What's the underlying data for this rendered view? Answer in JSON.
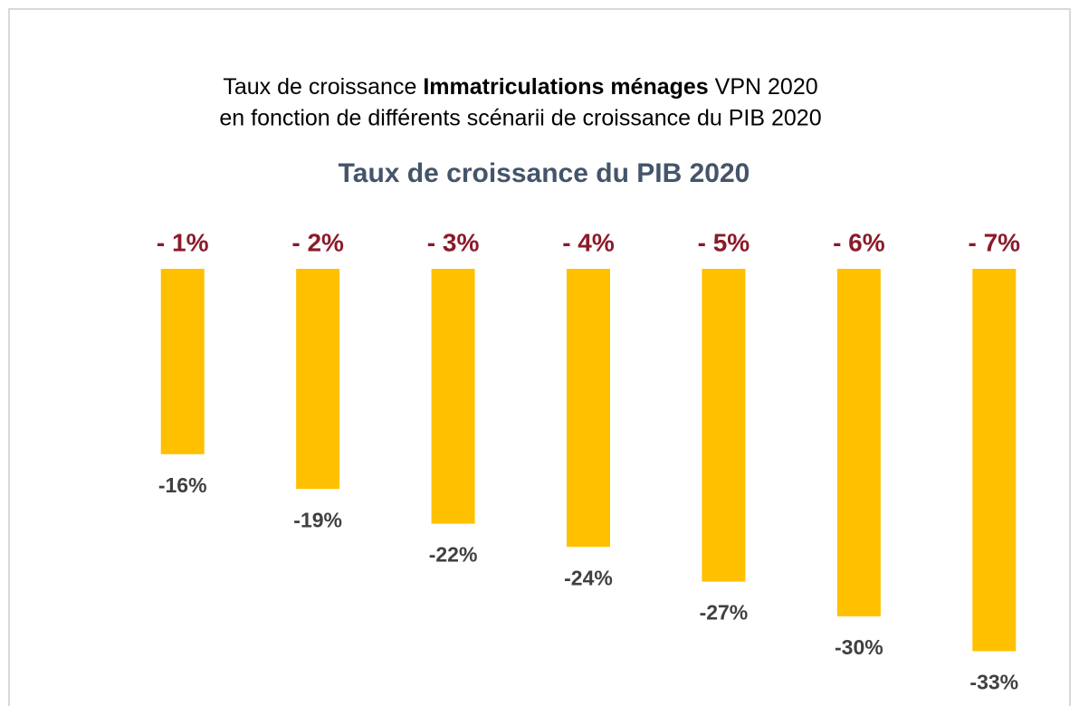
{
  "chart_data": {
    "type": "bar",
    "title": [
      "Taux de croissance",
      "Immatriculations ménages",
      "VPN 2020"
    ],
    "subtitle": "en fonction de différents scénarii de croissance du PIB 2020",
    "x_label": "Taux de croissance du PIB 2020",
    "categories": [
      "- 1%",
      "- 2%",
      "- 3%",
      "- 4%",
      "- 5%",
      "- 6%",
      "- 7%"
    ],
    "values": [
      -16,
      -19,
      -22,
      -24,
      -27,
      -30,
      -33
    ],
    "value_labels": [
      "-16%",
      "-19%",
      "-22%",
      "-24%",
      "-27%",
      "-30%",
      "-33%"
    ],
    "color": "#ffc000",
    "ylim": [
      -35,
      0
    ]
  }
}
